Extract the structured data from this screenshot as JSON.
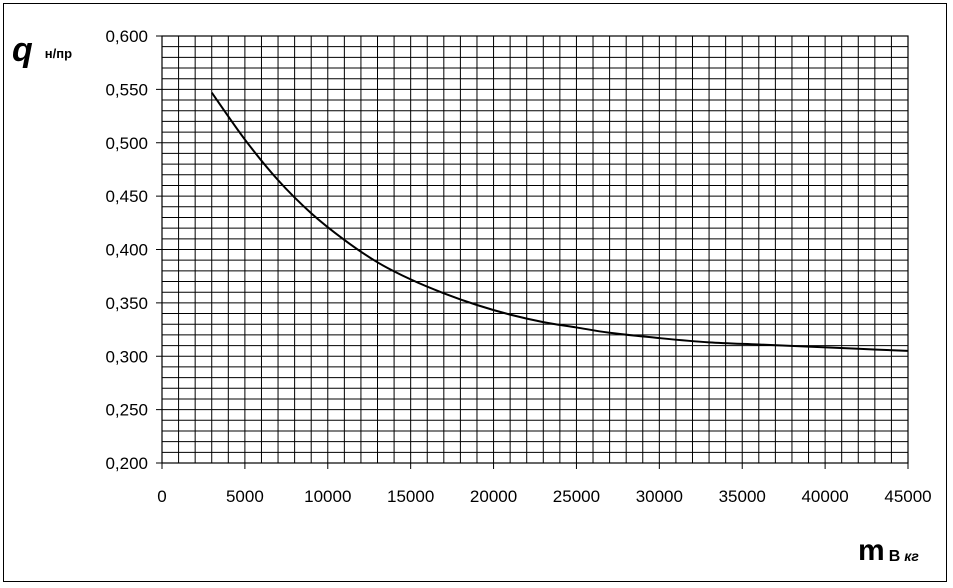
{
  "chart_data": {
    "type": "line",
    "ylabel": "q",
    "ylabel_sub": "н/пр",
    "xlabel": "m",
    "xlabel_sub": "В",
    "xlabel_unit": "кг",
    "xlim": [
      0,
      45000
    ],
    "ylim": [
      0.2,
      0.6
    ],
    "grid": true,
    "x_ticks": [
      "0",
      "5000",
      "10000",
      "15000",
      "20000",
      "25000",
      "30000",
      "35000",
      "40000",
      "45000"
    ],
    "y_ticks": [
      "0,200",
      "0,250",
      "0,300",
      "0,350",
      "0,400",
      "0,450",
      "0,500",
      "0,550",
      "0,600"
    ],
    "series": [
      {
        "x": [
          3000,
          5000,
          7000,
          9000,
          11000,
          13000,
          15000,
          17000,
          19000,
          21000,
          23000,
          25000,
          27000,
          30000,
          33000,
          36000,
          39000,
          42000,
          45000
        ],
        "y": [
          0.547,
          0.503,
          0.465,
          0.434,
          0.409,
          0.388,
          0.372,
          0.359,
          0.348,
          0.339,
          0.332,
          0.327,
          0.322,
          0.317,
          0.313,
          0.311,
          0.309,
          0.307,
          0.305
        ]
      }
    ]
  }
}
